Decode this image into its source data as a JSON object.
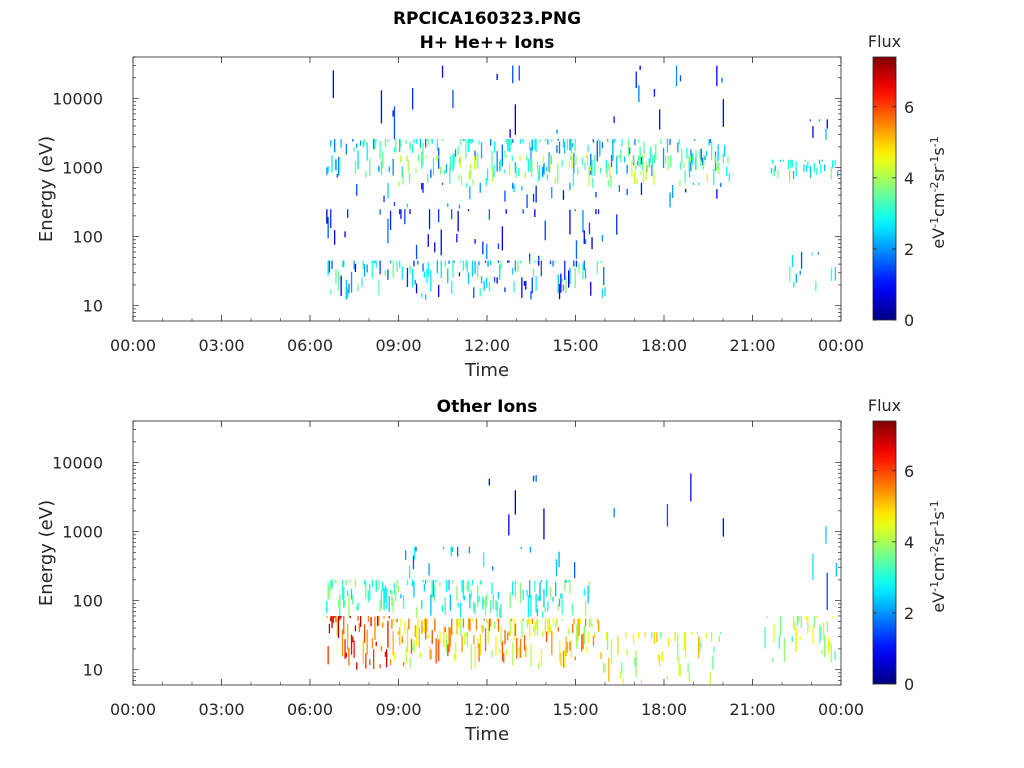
{
  "figure": {
    "title_line1": "RPCICA160323.PNG",
    "title_line2": "H+ He++ Ions"
  },
  "chart_data": [
    {
      "type": "heatmap",
      "title": "H+ He++ Ions",
      "xlabel": "Time",
      "ylabel": "Energy (eV)",
      "x_ticks": [
        "00:00",
        "03:00",
        "06:00",
        "09:00",
        "12:00",
        "15:00",
        "18:00",
        "21:00",
        "00:00"
      ],
      "x_range_hours": [
        0,
        24
      ],
      "y_scale": "log",
      "y_ticks": [
        10,
        100,
        1000,
        10000
      ],
      "y_tick_labels": [
        "10",
        "100",
        "1000",
        "10000"
      ],
      "ylim": [
        6,
        40000
      ],
      "colorbar": {
        "label_top": "Flux",
        "unit": "eV-1cm-2sr-1s-1",
        "ticks": [
          0,
          2,
          4,
          6
        ],
        "range": [
          0,
          7.4
        ],
        "colormap": "jet"
      },
      "data_start_hour": 6.55,
      "bands": [
        {
          "start": 6.55,
          "end": 20.2,
          "emin": 700,
          "emax": 2600,
          "vmin": 1.5,
          "vmax": 3.6,
          "density": 0.55
        },
        {
          "start": 9.0,
          "end": 20.2,
          "emin": 500,
          "emax": 1500,
          "vmin": 2.8,
          "vmax": 4.4,
          "density": 0.45
        },
        {
          "start": 6.55,
          "end": 16.0,
          "emin": 12,
          "emax": 45,
          "vmin": 0.6,
          "vmax": 3.8,
          "density": 0.55
        },
        {
          "start": 6.55,
          "end": 16.5,
          "emin": 40,
          "emax": 250,
          "vmin": 0.5,
          "vmax": 2.0,
          "density": 0.18
        },
        {
          "start": 6.55,
          "end": 20.0,
          "emin": 2500,
          "emax": 30000,
          "vmin": 0.4,
          "vmax": 2.0,
          "density": 0.08
        },
        {
          "start": 6.55,
          "end": 20.0,
          "emin": 250,
          "emax": 600,
          "vmin": 0.8,
          "vmax": 2.6,
          "density": 0.1
        },
        {
          "start": 21.4,
          "end": 23.9,
          "emin": 600,
          "emax": 1300,
          "vmin": 2.2,
          "vmax": 3.8,
          "density": 0.45
        },
        {
          "start": 22.2,
          "end": 23.8,
          "emin": 15,
          "emax": 60,
          "vmin": 1.5,
          "vmax": 3.5,
          "density": 0.15
        },
        {
          "start": 22.5,
          "end": 23.8,
          "emin": 2000,
          "emax": 5000,
          "vmin": 0.5,
          "vmax": 2.5,
          "density": 0.1
        }
      ]
    },
    {
      "type": "heatmap",
      "title": "Other Ions",
      "xlabel": "Time",
      "ylabel": "Energy (eV)",
      "x_ticks": [
        "00:00",
        "03:00",
        "06:00",
        "09:00",
        "12:00",
        "15:00",
        "18:00",
        "21:00",
        "00:00"
      ],
      "x_range_hours": [
        0,
        24
      ],
      "y_scale": "log",
      "y_ticks": [
        10,
        100,
        1000,
        10000
      ],
      "y_tick_labels": [
        "10",
        "100",
        "1000",
        "10000"
      ],
      "ylim": [
        6,
        40000
      ],
      "colorbar": {
        "label_top": "Flux",
        "unit": "eV-1cm-2sr-1s-1",
        "ticks": [
          0,
          2,
          4,
          6
        ],
        "range": [
          0,
          7.4
        ],
        "colormap": "jet"
      },
      "data_start_hour": 6.55,
      "bands": [
        {
          "start": 6.55,
          "end": 8.8,
          "emin": 10,
          "emax": 60,
          "vmin": 5.0,
          "vmax": 7.2,
          "density": 0.95
        },
        {
          "start": 8.8,
          "end": 15.8,
          "emin": 10,
          "emax": 55,
          "vmin": 3.8,
          "vmax": 6.0,
          "density": 0.9
        },
        {
          "start": 15.8,
          "end": 20.0,
          "emin": 6,
          "emax": 35,
          "vmin": 3.4,
          "vmax": 5.2,
          "density": 0.45
        },
        {
          "start": 6.55,
          "end": 15.5,
          "emin": 55,
          "emax": 200,
          "vmin": 2.2,
          "vmax": 4.0,
          "density": 0.6
        },
        {
          "start": 9.0,
          "end": 15.5,
          "emin": 200,
          "emax": 600,
          "vmin": 1.5,
          "vmax": 3.0,
          "density": 0.12
        },
        {
          "start": 11.0,
          "end": 20.0,
          "emin": 600,
          "emax": 7000,
          "vmin": 0.4,
          "vmax": 2.0,
          "density": 0.08
        },
        {
          "start": 21.4,
          "end": 23.8,
          "emin": 12,
          "emax": 60,
          "vmin": 3.0,
          "vmax": 4.8,
          "density": 0.5
        },
        {
          "start": 22.5,
          "end": 23.9,
          "emin": 70,
          "emax": 1200,
          "vmin": 0.8,
          "vmax": 2.8,
          "density": 0.1
        }
      ]
    }
  ]
}
